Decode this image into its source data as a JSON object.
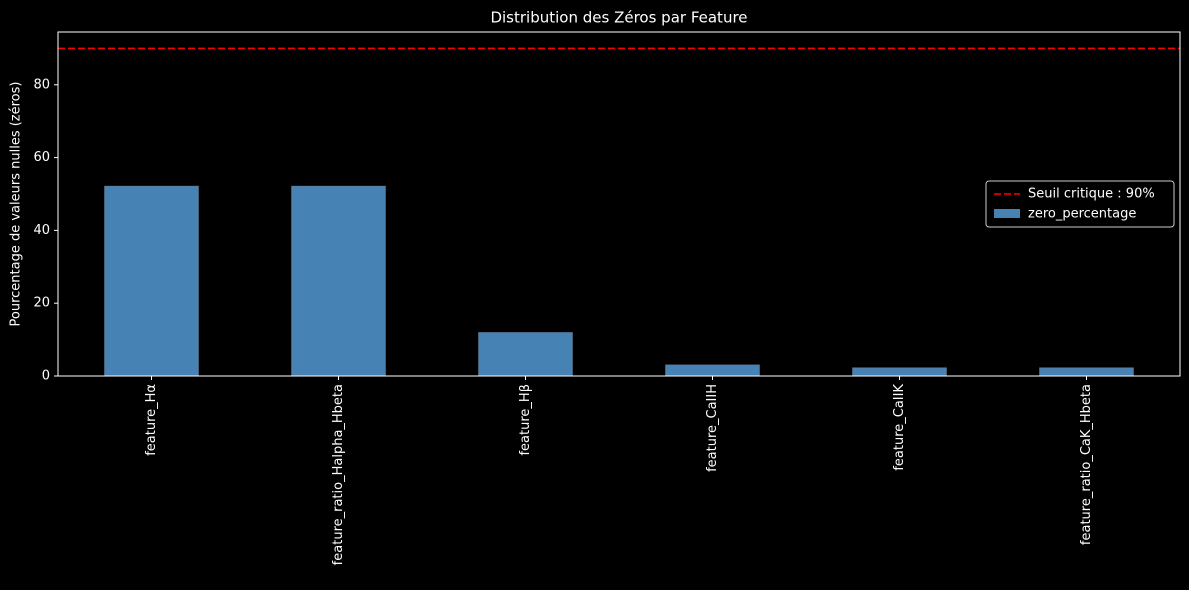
{
  "chart_data": {
    "type": "bar",
    "title": "Distribution des Zéros par Feature",
    "ylabel": "Pourcentage de valeurs nulles (zéros)",
    "categories": [
      "feature_Hα",
      "feature_ratio_Halpha_Hbeta",
      "feature_Hβ",
      "feature_CaIIH",
      "feature_CaIIK",
      "feature_ratio_CaK_Hbeta"
    ],
    "series": [
      {
        "name": "zero_percentage",
        "color": "#4682b4",
        "values": [
          52.1,
          52.1,
          11.9,
          3.0,
          2.2,
          2.2
        ]
      }
    ],
    "threshold": {
      "name": "Seuil critique : 90%",
      "value": 90,
      "color": "#ff0000"
    },
    "ylim": [
      0,
      94.5
    ],
    "yticks": [
      0,
      20,
      40,
      60,
      80
    ],
    "legend": "center right"
  }
}
